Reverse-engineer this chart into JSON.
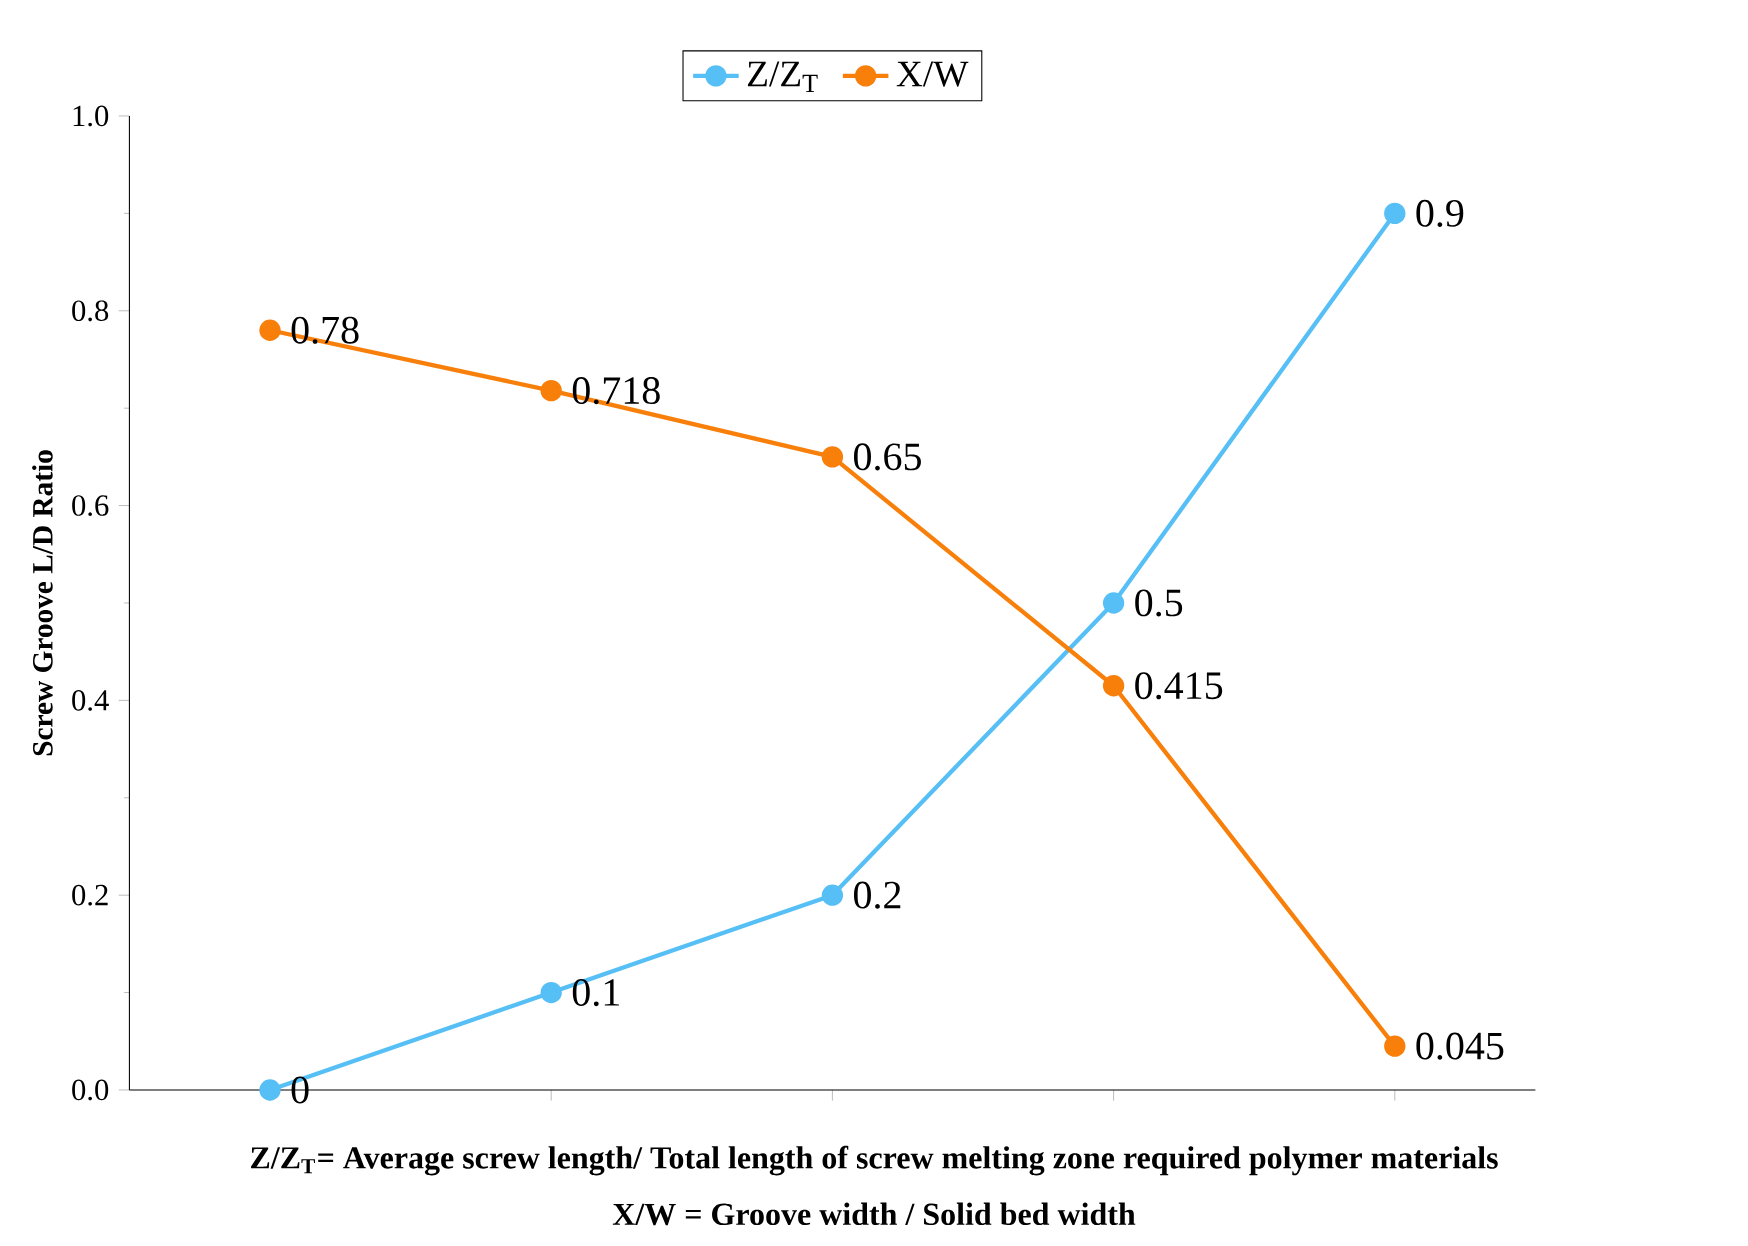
{
  "chart_data": {
    "type": "line",
    "ylabel": "Screw Groove L/D Ratio",
    "xlabel": "Z/Z$_{T}$= Average screw length/ Total length of screw melting zone required polymer materials",
    "annotations": [
      "X/W = Groove width / Solid bed width"
    ],
    "categories": [
      null,
      null,
      null,
      null,
      null
    ],
    "series": [
      {
        "name": "Z/Z$_{T}$",
        "color": "#56bff5",
        "values": [
          0,
          0.1,
          0.2,
          0.5,
          0.9
        ]
      },
      {
        "name": "X/W",
        "color": "#f77f0a",
        "values": [
          0.78,
          0.718,
          0.65,
          0.415,
          0.045
        ]
      }
    ],
    "ylim": [
      0,
      1
    ],
    "yticks": [
      {
        "value": 0,
        "label": "0.0"
      },
      0.2,
      0.4,
      0.6,
      0.8,
      {
        "value": 1,
        "label": "1.0"
      }
    ],
    "data_labels": true,
    "legend": "top",
    "marker": "circle",
    "line_style": "solid",
    "grid": false
  }
}
